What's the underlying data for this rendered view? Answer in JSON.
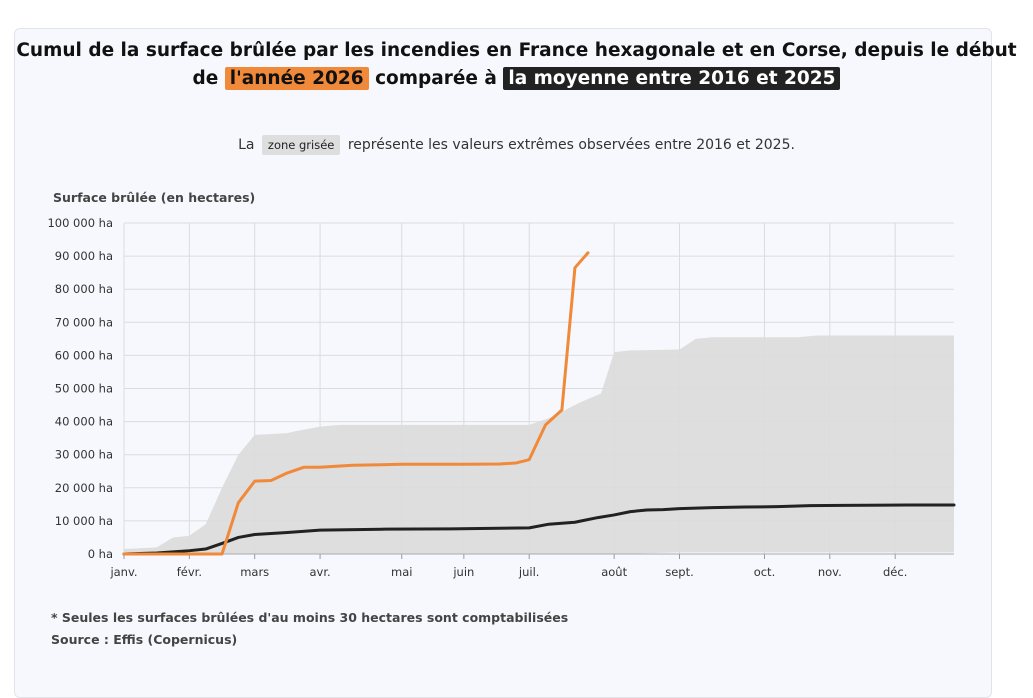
{
  "title": {
    "part1": "Cumul de la surface brûlée par les incendies en France hexagonale et en Corse, depuis le début",
    "part2": "de",
    "highlight_year": "l'année 2026",
    "part3": "comparée à",
    "highlight_avg": "la moyenne entre 2016 et 2025"
  },
  "subtitle": {
    "before": "La",
    "chip": "zone grisée",
    "after": "représente les valeurs extrêmes observées entre 2016 et 2025."
  },
  "footnote": "* Seules les surfaces brûlées d'au moins 30 hectares sont comptabilisées",
  "source": "Source : Effis (Copernicus)",
  "colors": {
    "orange": "#f08a3a",
    "dark": "#222222",
    "range": "#dedede",
    "grid": "#dcdcdc"
  },
  "chart_data": {
    "type": "line",
    "ylabel": "Surface brûlée (en hectares)",
    "ylim": [
      0,
      100000
    ],
    "xlim": [
      0,
      12.7
    ],
    "grid": true,
    "yticks": [
      {
        "value": 0,
        "label": "0 ha"
      },
      {
        "value": 10000,
        "label": "10 000 ha"
      },
      {
        "value": 20000,
        "label": "20 000 ha"
      },
      {
        "value": 30000,
        "label": "30 000 ha"
      },
      {
        "value": 40000,
        "label": "40 000 ha"
      },
      {
        "value": 50000,
        "label": "50 000 ha"
      },
      {
        "value": 60000,
        "label": "60 000 ha"
      },
      {
        "value": 70000,
        "label": "70 000 ha"
      },
      {
        "value": 80000,
        "label": "80 000 ha"
      },
      {
        "value": 90000,
        "label": "90 000 ha"
      },
      {
        "value": 100000,
        "label": "100 000 ha"
      }
    ],
    "xticks": [
      {
        "value": 0,
        "label": "janv."
      },
      {
        "value": 1,
        "label": "févr."
      },
      {
        "value": 2,
        "label": "mars"
      },
      {
        "value": 3,
        "label": "avr."
      },
      {
        "value": 4.25,
        "label": "mai"
      },
      {
        "value": 5.2,
        "label": "juin"
      },
      {
        "value": 6.2,
        "label": "juil."
      },
      {
        "value": 7.5,
        "label": "août"
      },
      {
        "value": 8.5,
        "label": "sept."
      },
      {
        "value": 9.8,
        "label": "oct."
      },
      {
        "value": 10.8,
        "label": "nov."
      },
      {
        "value": 11.8,
        "label": "déc."
      }
    ],
    "range": {
      "upper": [
        [
          0,
          1500
        ],
        [
          0.5,
          2000
        ],
        [
          0.75,
          5000
        ],
        [
          1.0,
          5500
        ],
        [
          1.25,
          9000
        ],
        [
          1.5,
          20000
        ],
        [
          1.75,
          30000
        ],
        [
          2.0,
          36000
        ],
        [
          2.5,
          36500
        ],
        [
          2.6,
          37000
        ],
        [
          3.0,
          38500
        ],
        [
          3.3,
          39000
        ],
        [
          6.2,
          39000
        ],
        [
          6.5,
          41000
        ],
        [
          7.0,
          46000
        ],
        [
          7.3,
          48500
        ],
        [
          7.5,
          61000
        ],
        [
          7.75,
          61500
        ],
        [
          8.5,
          61800
        ],
        [
          8.75,
          65000
        ],
        [
          9.0,
          65500
        ],
        [
          10.3,
          65500
        ],
        [
          10.6,
          66000
        ],
        [
          12.7,
          66000
        ]
      ],
      "lower": [
        [
          0,
          0
        ],
        [
          7.5,
          0
        ],
        [
          8.5,
          500
        ],
        [
          12.7,
          500
        ]
      ]
    },
    "series": [
      {
        "name": "l'année 2026",
        "color": "#f08a3a",
        "points": [
          [
            0,
            0
          ],
          [
            1.5,
            0
          ],
          [
            1.75,
            15500
          ],
          [
            2.0,
            22000
          ],
          [
            2.25,
            22200
          ],
          [
            2.5,
            24500
          ],
          [
            2.75,
            26200
          ],
          [
            3.0,
            26200
          ],
          [
            3.5,
            26800
          ],
          [
            4.25,
            27100
          ],
          [
            5.25,
            27100
          ],
          [
            5.75,
            27200
          ],
          [
            6.0,
            27500
          ],
          [
            6.2,
            28500
          ],
          [
            6.45,
            39000
          ],
          [
            6.7,
            43500
          ],
          [
            6.9,
            86500
          ],
          [
            7.1,
            91000
          ]
        ]
      },
      {
        "name": "la moyenne entre 2016 et 2025",
        "color": "#222222",
        "points": [
          [
            0,
            0
          ],
          [
            0.5,
            300
          ],
          [
            1.0,
            1000
          ],
          [
            1.25,
            1500
          ],
          [
            1.5,
            3200
          ],
          [
            1.75,
            5000
          ],
          [
            2.0,
            5900
          ],
          [
            2.5,
            6500
          ],
          [
            3.0,
            7200
          ],
          [
            4.0,
            7500
          ],
          [
            5.0,
            7600
          ],
          [
            6.2,
            7900
          ],
          [
            6.5,
            9000
          ],
          [
            6.9,
            9600
          ],
          [
            7.0,
            10000
          ],
          [
            7.25,
            11000
          ],
          [
            7.5,
            11800
          ],
          [
            7.75,
            12800
          ],
          [
            8.0,
            13300
          ],
          [
            8.25,
            13400
          ],
          [
            8.5,
            13700
          ],
          [
            9.0,
            14000
          ],
          [
            9.5,
            14200
          ],
          [
            10.0,
            14300
          ],
          [
            10.5,
            14600
          ],
          [
            11.0,
            14700
          ],
          [
            12.0,
            14800
          ],
          [
            12.7,
            14800
          ]
        ]
      }
    ]
  }
}
